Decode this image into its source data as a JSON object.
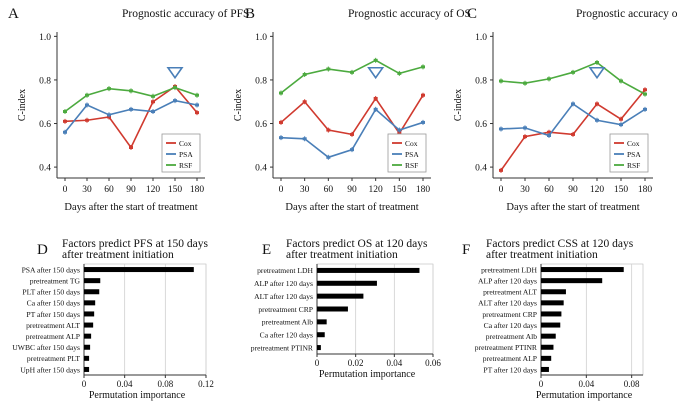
{
  "figure": {
    "series_colors": {
      "Cox": "#d03a2f",
      "PSA": "#4a7fb8",
      "RSF": "#4caa3f"
    },
    "bar_color": "#000000",
    "marker_color": "#4a7fb8"
  },
  "chart_data": [
    {
      "id": "A",
      "panel_label": "A",
      "type": "line",
      "title": "Prognostic accuracy of PFS",
      "xlabel": "Days after the start of treatment",
      "ylabel": "C-index",
      "x": [
        0,
        30,
        60,
        90,
        120,
        150,
        180
      ],
      "x_ticks": [
        "0",
        "30",
        "60",
        "90",
        "120",
        "150",
        "180"
      ],
      "y_ticks": [
        "0.4",
        "0.6",
        "0.8",
        "1.0"
      ],
      "ylim": [
        0.35,
        1.02
      ],
      "series": [
        {
          "name": "Cox",
          "values": [
            0.61,
            0.615,
            0.63,
            0.49,
            0.7,
            0.77,
            0.65
          ]
        },
        {
          "name": "PSA",
          "values": [
            0.56,
            0.685,
            0.64,
            0.665,
            0.655,
            0.705,
            0.685
          ]
        },
        {
          "name": "RSF",
          "values": [
            0.655,
            0.73,
            0.76,
            0.75,
            0.725,
            0.765,
            0.73
          ]
        }
      ],
      "legend": [
        "Cox",
        "PSA",
        "RSF"
      ],
      "legend_position": "bottom-right",
      "best_marker_x": 150
    },
    {
      "id": "B",
      "panel_label": "B",
      "type": "line",
      "title": "Prognostic accuracy of OS",
      "xlabel": "Days after the start of treatment",
      "ylabel": "C-index",
      "x": [
        0,
        30,
        60,
        90,
        120,
        150,
        180
      ],
      "x_ticks": [
        "0",
        "30",
        "60",
        "90",
        "120",
        "150",
        "180"
      ],
      "y_ticks": [
        "0.4",
        "0.6",
        "0.8",
        "1.0"
      ],
      "ylim": [
        0.35,
        1.02
      ],
      "series": [
        {
          "name": "Cox",
          "values": [
            0.605,
            0.7,
            0.57,
            0.55,
            0.715,
            0.555,
            0.73
          ]
        },
        {
          "name": "PSA",
          "values": [
            0.535,
            0.53,
            0.445,
            0.48,
            0.665,
            0.57,
            0.605
          ]
        },
        {
          "name": "RSF",
          "values": [
            0.74,
            0.825,
            0.85,
            0.835,
            0.89,
            0.83,
            0.86
          ]
        }
      ],
      "legend": [
        "Cox",
        "PSA",
        "RSF"
      ],
      "legend_position": "bottom-right",
      "best_marker_x": 120
    },
    {
      "id": "C",
      "panel_label": "C",
      "type": "line",
      "title": "Prognostic accuracy of CSS",
      "xlabel": "Days after the start of treatment",
      "ylabel": "C-index",
      "x": [
        0,
        30,
        60,
        90,
        120,
        150,
        180
      ],
      "x_ticks": [
        "0",
        "30",
        "60",
        "90",
        "120",
        "150",
        "180"
      ],
      "y_ticks": [
        "0.4",
        "0.6",
        "0.8",
        "1.0"
      ],
      "ylim": [
        0.35,
        1.02
      ],
      "series": [
        {
          "name": "Cox",
          "values": [
            0.385,
            0.54,
            0.56,
            0.55,
            0.69,
            0.62,
            0.755
          ]
        },
        {
          "name": "PSA",
          "values": [
            0.575,
            0.58,
            0.545,
            0.69,
            0.615,
            0.595,
            0.665
          ]
        },
        {
          "name": "RSF",
          "values": [
            0.795,
            0.785,
            0.805,
            0.835,
            0.88,
            0.795,
            0.735
          ]
        }
      ],
      "legend": [
        "Cox",
        "PSA",
        "RSF"
      ],
      "legend_position": "bottom-right",
      "best_marker_x": 120
    },
    {
      "id": "D",
      "panel_label": "D",
      "type": "bar",
      "orientation": "horizontal",
      "title_lines": [
        "Factors predict PFS at 150 days",
        "after treatment initiation"
      ],
      "xlabel": "Permutation importance",
      "x_ticks": [
        "0",
        "0.04",
        "0.08",
        "0.12"
      ],
      "x_tick_values": [
        0,
        0.04,
        0.08,
        0.12
      ],
      "xlim": [
        0,
        0.12
      ],
      "categories": [
        "PSA after 150 days",
        "pretreatment TG",
        "PLT after 150 days",
        "Ca after 150 days",
        "PT after 150 days",
        "pretreatment ALT",
        "pretreatment ALP",
        "UWBC after 150 days",
        "pretreatment PLT",
        "UpH after 150 days"
      ],
      "values": [
        0.108,
        0.016,
        0.015,
        0.011,
        0.01,
        0.009,
        0.007,
        0.006,
        0.005,
        0.005
      ]
    },
    {
      "id": "E",
      "panel_label": "E",
      "type": "bar",
      "orientation": "horizontal",
      "title_lines": [
        "Factors predict OS at 120 days",
        "after treatment initiation"
      ],
      "xlabel": "Permutation importance",
      "x_ticks": [
        "0",
        "0.02",
        "0.04",
        "0.06"
      ],
      "x_tick_values": [
        0,
        0.02,
        0.04,
        0.06
      ],
      "xlim": [
        0,
        0.06
      ],
      "categories": [
        "pretreatment LDH",
        "ALP after 120 days",
        "ALT after 120 days",
        "pretreatment CRP",
        "pretreatment Alb",
        "Ca after 120 days",
        "pretreatment PTINR"
      ],
      "values": [
        0.053,
        0.031,
        0.024,
        0.016,
        0.005,
        0.004,
        0.002
      ]
    },
    {
      "id": "F",
      "panel_label": "F",
      "type": "bar",
      "orientation": "horizontal",
      "title_lines": [
        "Factors predict CSS at 120 days",
        "after treatment initiation"
      ],
      "xlabel": "Permutation importance",
      "x_ticks": [
        "0",
        "0.04",
        "0.08"
      ],
      "x_tick_values": [
        0,
        0.04,
        0.08
      ],
      "xlim": [
        0,
        0.09
      ],
      "categories": [
        "pretreatment LDH",
        "ALP after 120 days",
        "pretreatment ALT",
        "ALT after 120 days",
        "pretreatment CRP",
        "Ca after 120 days",
        "pretreatment Alb",
        "pretreatment PTINR",
        "pretreatment ALP",
        "PT after 120 days"
      ],
      "values": [
        0.073,
        0.054,
        0.022,
        0.02,
        0.018,
        0.017,
        0.013,
        0.011,
        0.009,
        0.007
      ]
    }
  ]
}
